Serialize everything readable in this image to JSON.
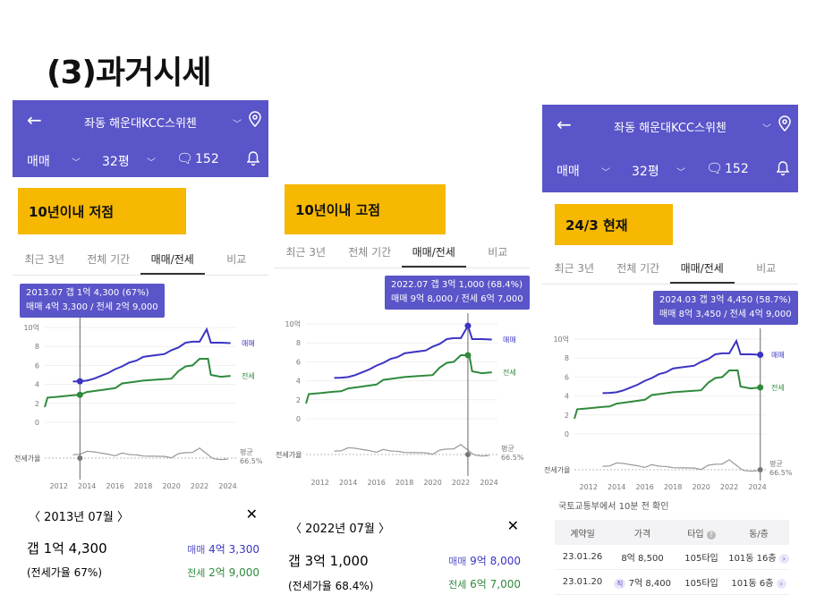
{
  "page_title": "(3)과거시세",
  "colors": {
    "header": "#5a55c8",
    "sale": "#3b33c4",
    "jeonse": "#2f8a3c",
    "tag": "#f6b800",
    "gap": "#888888"
  },
  "panels": [
    {
      "header": {
        "apartment": "좌동 해운대KCC스위첸",
        "trade_type": "매매",
        "size": "32평",
        "comments": "152"
      },
      "tag": "10년이내 저점",
      "tabs": [
        "최근 3년",
        "전체 기간",
        "매매/전세",
        "비교"
      ],
      "tooltip": {
        "line1": "2013.07  갭 1억 4,300 (67%)",
        "line2": "매매 4억 3,300 / 전세 2억 9,000"
      },
      "detail": {
        "month": "2013년 07월",
        "gap": "갭 1억 4,300",
        "ratio": "(전세가율 67%)",
        "sale_label": "매매",
        "sale_value": "4억 3,300",
        "jeonse_label": "전세",
        "jeonse_value": "2억 9,000"
      }
    },
    {
      "header": {
        "apartment": "좌동 해운대KCC스위첸",
        "trade_type": "매매",
        "size": "32평",
        "comments": "152"
      },
      "tag": "10년이내 고점",
      "tabs": [
        "최근 3년",
        "전체 기간",
        "매매/전세",
        "비교"
      ],
      "tooltip": {
        "line1": "2022.07  갭 3억 1,000 (68.4%)",
        "line2": "매매 9억 8,000 / 전세 6억 7,000"
      },
      "detail": {
        "month": "2022년 07월",
        "gap": "갭 3억 1,000",
        "ratio": "(전세가율 68.4%)",
        "sale_label": "매매",
        "sale_value": "9억 8,000",
        "jeonse_label": "전세",
        "jeonse_value": "6억 7,000"
      }
    },
    {
      "header": {
        "apartment": "좌동 해운대KCC스위첸",
        "trade_type": "매매",
        "size": "32평",
        "comments": "152"
      },
      "tag": "24/3 현재",
      "tabs": [
        "최근 3년",
        "전체 기간",
        "매매/전세",
        "비교"
      ],
      "tooltip": {
        "line1": "2024.03  갭 3억 4,450 (58.7%)",
        "line2": "매매 8억 3,450 / 전세 4억 9,000"
      },
      "footnote": "국토교통부에서 10분 전 확인",
      "table": {
        "headers": [
          "계약일",
          "가격",
          "타입",
          "동/층"
        ],
        "rows": [
          {
            "date": "23.01.26",
            "badge": "",
            "price": "8억 8,500",
            "type": "105타입",
            "floor": "101동 16층"
          },
          {
            "date": "23.01.20",
            "badge": "직",
            "price": "7억 8,400",
            "type": "105타입",
            "floor": "101동 6층"
          }
        ]
      }
    }
  ],
  "chart_data": [
    {
      "type": "line",
      "x_ticks": [
        "2012",
        "2014",
        "2016",
        "2018",
        "2020",
        "2022",
        "2024"
      ],
      "y_ticks": [
        "10억",
        "8",
        "6",
        "4",
        "2",
        "0"
      ],
      "ylim": [
        0,
        10
      ],
      "xlim": [
        2011,
        2024.6
      ],
      "series": [
        {
          "name": "매매",
          "points": [
            [
              2013.0,
              4.3
            ],
            [
              2013.5,
              4.33
            ],
            [
              2014.0,
              4.4
            ],
            [
              2014.5,
              4.6
            ],
            [
              2015.0,
              4.9
            ],
            [
              2015.5,
              5.2
            ],
            [
              2016.0,
              5.6
            ],
            [
              2016.5,
              5.9
            ],
            [
              2017.0,
              6.3
            ],
            [
              2017.5,
              6.5
            ],
            [
              2018.0,
              6.9
            ],
            [
              2018.5,
              7.0
            ],
            [
              2019.0,
              7.1
            ],
            [
              2019.5,
              7.2
            ],
            [
              2020.0,
              7.6
            ],
            [
              2020.5,
              7.9
            ],
            [
              2021.0,
              8.4
            ],
            [
              2021.5,
              8.5
            ],
            [
              2022.0,
              8.5
            ],
            [
              2022.5,
              9.8
            ],
            [
              2022.8,
              8.4
            ],
            [
              2023.5,
              8.4
            ],
            [
              2024.2,
              8.35
            ]
          ]
        },
        {
          "name": "전세",
          "points": [
            [
              2011.0,
              1.6
            ],
            [
              2011.2,
              2.6
            ],
            [
              2012.0,
              2.7
            ],
            [
              2013.0,
              2.85
            ],
            [
              2013.5,
              2.9
            ],
            [
              2014.0,
              3.2
            ],
            [
              2015.0,
              3.4
            ],
            [
              2016.0,
              3.6
            ],
            [
              2016.5,
              4.1
            ],
            [
              2017.0,
              4.2
            ],
            [
              2018.0,
              4.4
            ],
            [
              2019.0,
              4.5
            ],
            [
              2020.0,
              4.6
            ],
            [
              2020.5,
              5.4
            ],
            [
              2021.0,
              5.9
            ],
            [
              2021.5,
              6.0
            ],
            [
              2022.0,
              6.7
            ],
            [
              2022.6,
              6.7
            ],
            [
              2022.8,
              5.0
            ],
            [
              2023.5,
              4.8
            ],
            [
              2024.2,
              4.9
            ]
          ]
        }
      ],
      "ratio_series": {
        "name": "전세가율",
        "avg_label": "평균",
        "avg_value": "66.5%"
      },
      "selected_year": 2013.5
    },
    {
      "type": "line",
      "x_ticks": [
        "2012",
        "2014",
        "2016",
        "2018",
        "2020",
        "2022",
        "2024"
      ],
      "y_ticks": [
        "10억",
        "8",
        "6",
        "4",
        "2",
        "0"
      ],
      "ylim": [
        0,
        10
      ],
      "xlim": [
        2011,
        2024.6
      ],
      "series": [
        {
          "name": "매매",
          "points": [
            [
              2013.0,
              4.3
            ],
            [
              2013.5,
              4.33
            ],
            [
              2014.0,
              4.4
            ],
            [
              2014.5,
              4.6
            ],
            [
              2015.0,
              4.9
            ],
            [
              2015.5,
              5.2
            ],
            [
              2016.0,
              5.6
            ],
            [
              2016.5,
              5.9
            ],
            [
              2017.0,
              6.3
            ],
            [
              2017.5,
              6.5
            ],
            [
              2018.0,
              6.9
            ],
            [
              2018.5,
              7.0
            ],
            [
              2019.0,
              7.1
            ],
            [
              2019.5,
              7.2
            ],
            [
              2020.0,
              7.6
            ],
            [
              2020.5,
              7.9
            ],
            [
              2021.0,
              8.4
            ],
            [
              2021.5,
              8.5
            ],
            [
              2022.0,
              8.5
            ],
            [
              2022.5,
              9.8
            ],
            [
              2022.8,
              8.4
            ],
            [
              2023.5,
              8.4
            ],
            [
              2024.2,
              8.35
            ]
          ]
        },
        {
          "name": "전세",
          "points": [
            [
              2011.0,
              1.6
            ],
            [
              2011.2,
              2.6
            ],
            [
              2012.0,
              2.7
            ],
            [
              2013.0,
              2.85
            ],
            [
              2013.5,
              2.9
            ],
            [
              2014.0,
              3.2
            ],
            [
              2015.0,
              3.4
            ],
            [
              2016.0,
              3.6
            ],
            [
              2016.5,
              4.1
            ],
            [
              2017.0,
              4.2
            ],
            [
              2018.0,
              4.4
            ],
            [
              2019.0,
              4.5
            ],
            [
              2020.0,
              4.6
            ],
            [
              2020.5,
              5.4
            ],
            [
              2021.0,
              5.9
            ],
            [
              2021.5,
              6.0
            ],
            [
              2022.0,
              6.7
            ],
            [
              2022.6,
              6.7
            ],
            [
              2022.8,
              5.0
            ],
            [
              2023.5,
              4.8
            ],
            [
              2024.2,
              4.9
            ]
          ]
        }
      ],
      "ratio_series": {
        "name": "전세가율",
        "avg_label": "평균",
        "avg_value": "66.5%"
      },
      "selected_year": 2022.5
    },
    {
      "type": "line",
      "x_ticks": [
        "2012",
        "2014",
        "2016",
        "2018",
        "2020",
        "2022",
        "2024"
      ],
      "y_ticks": [
        "10억",
        "8",
        "6",
        "4",
        "2",
        "0"
      ],
      "ylim": [
        0,
        10
      ],
      "xlim": [
        2011,
        2024.6
      ],
      "series": [
        {
          "name": "매매",
          "points": [
            [
              2013.0,
              4.3
            ],
            [
              2013.5,
              4.33
            ],
            [
              2014.0,
              4.4
            ],
            [
              2014.5,
              4.6
            ],
            [
              2015.0,
              4.9
            ],
            [
              2015.5,
              5.2
            ],
            [
              2016.0,
              5.6
            ],
            [
              2016.5,
              5.9
            ],
            [
              2017.0,
              6.3
            ],
            [
              2017.5,
              6.5
            ],
            [
              2018.0,
              6.9
            ],
            [
              2018.5,
              7.0
            ],
            [
              2019.0,
              7.1
            ],
            [
              2019.5,
              7.2
            ],
            [
              2020.0,
              7.6
            ],
            [
              2020.5,
              7.9
            ],
            [
              2021.0,
              8.4
            ],
            [
              2021.5,
              8.5
            ],
            [
              2022.0,
              8.5
            ],
            [
              2022.5,
              9.8
            ],
            [
              2022.8,
              8.4
            ],
            [
              2023.5,
              8.4
            ],
            [
              2024.2,
              8.35
            ]
          ]
        },
        {
          "name": "전세",
          "points": [
            [
              2011.0,
              1.6
            ],
            [
              2011.2,
              2.6
            ],
            [
              2012.0,
              2.7
            ],
            [
              2013.0,
              2.85
            ],
            [
              2013.5,
              2.9
            ],
            [
              2014.0,
              3.2
            ],
            [
              2015.0,
              3.4
            ],
            [
              2016.0,
              3.6
            ],
            [
              2016.5,
              4.1
            ],
            [
              2017.0,
              4.2
            ],
            [
              2018.0,
              4.4
            ],
            [
              2019.0,
              4.5
            ],
            [
              2020.0,
              4.6
            ],
            [
              2020.5,
              5.4
            ],
            [
              2021.0,
              5.9
            ],
            [
              2021.5,
              6.0
            ],
            [
              2022.0,
              6.7
            ],
            [
              2022.6,
              6.7
            ],
            [
              2022.8,
              5.0
            ],
            [
              2023.5,
              4.8
            ],
            [
              2024.2,
              4.9
            ]
          ]
        }
      ],
      "ratio_series": {
        "name": "전세가율",
        "avg_label": "평균",
        "avg_value": "66.5%"
      },
      "selected_year": 2024.2
    }
  ]
}
